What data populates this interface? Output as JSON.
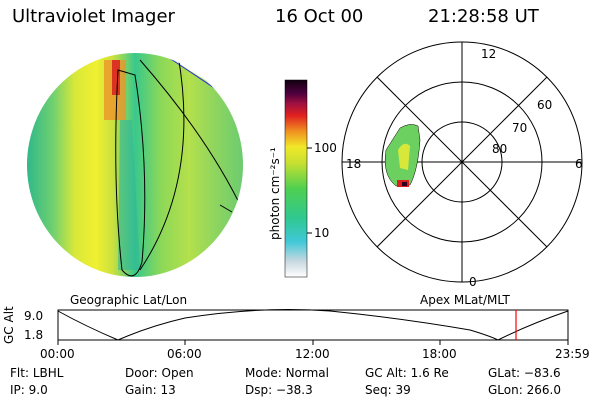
{
  "header": {
    "title": "Ultraviolet Imager",
    "date": "16 Oct 00",
    "time": "21:28:58 UT"
  },
  "colorbar": {
    "label": "photon cm⁻²s⁻¹",
    "ticks": [
      "100",
      "10"
    ]
  },
  "polar": {
    "mlt_labels": [
      "12",
      "18",
      "6",
      "0"
    ],
    "lat_labels": [
      "60",
      "70",
      "80"
    ]
  },
  "map_labels": {
    "left": "Geographic Lat/Lon",
    "right": "Apex MLat/MLT"
  },
  "timeline": {
    "axis_title": "GC Alt",
    "y_ticks": [
      "9.0",
      "1.8"
    ],
    "x_ticks": [
      "00:00",
      "06:00",
      "12:00",
      "18:00",
      "23:59"
    ],
    "marker_color": "#ff0000"
  },
  "info": {
    "row1": [
      {
        "key": "Flt:",
        "value": "LBHL"
      },
      {
        "key": "Door:",
        "value": "Open"
      },
      {
        "key": "Mode:",
        "value": "Normal"
      },
      {
        "key": "GC Alt:",
        "value": "1.6 Re"
      },
      {
        "key": "GLat:",
        "value": "−83.6"
      }
    ],
    "row2": [
      {
        "key": "IP:",
        "value": "9.0"
      },
      {
        "key": "Gain:",
        "value": "13"
      },
      {
        "key": "Dsp:",
        "value": "−38.3"
      },
      {
        "key": "Seq:",
        "value": "39"
      },
      {
        "key": "GLon:",
        "value": "266.0"
      }
    ]
  }
}
